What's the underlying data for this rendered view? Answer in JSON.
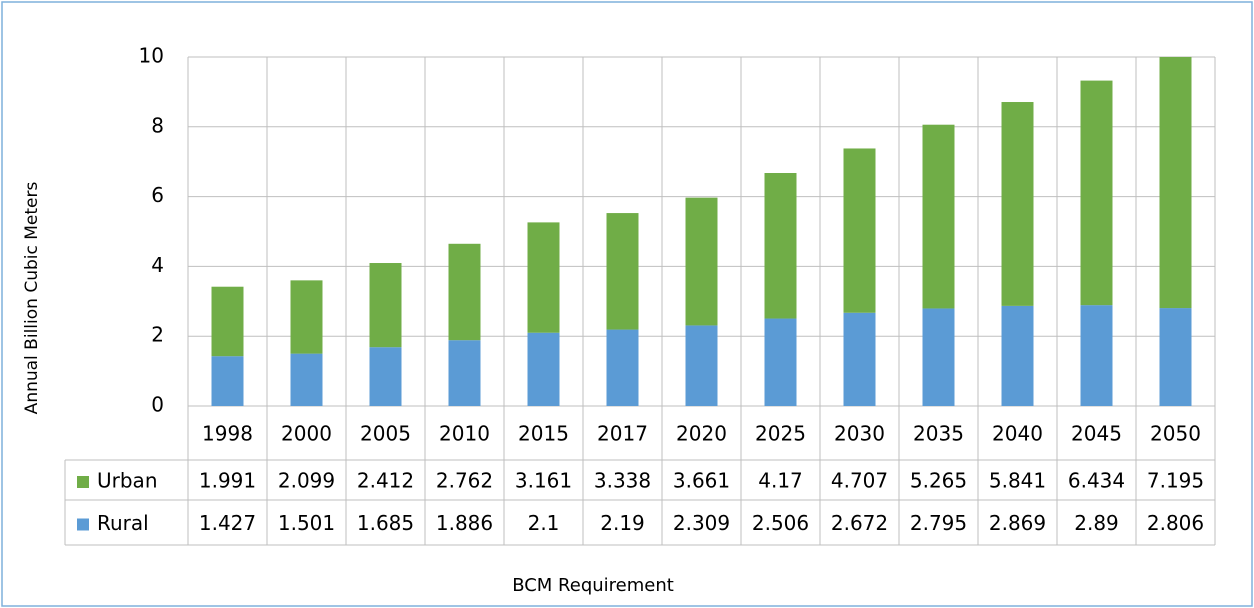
{
  "chart_data": {
    "type": "stacked_bar",
    "y_axis_label": "Annual Billion Cubic Meters",
    "x_axis_label": "BCM Requirement",
    "categories": [
      "1998",
      "2000",
      "2005",
      "2010",
      "2015",
      "2017",
      "2020",
      "2025",
      "2030",
      "2035",
      "2040",
      "2045",
      "2050"
    ],
    "series": [
      {
        "name": "Urban",
        "color": "#70ad47",
        "values": [
          1.991,
          2.099,
          2.412,
          2.762,
          3.161,
          3.338,
          3.661,
          4.17,
          4.707,
          5.265,
          5.841,
          6.434,
          7.195
        ]
      },
      {
        "name": "Rural",
        "color": "#5b9bd5",
        "values": [
          1.427,
          1.501,
          1.685,
          1.886,
          2.1,
          2.19,
          2.309,
          2.506,
          2.672,
          2.795,
          2.869,
          2.89,
          2.806
        ]
      }
    ],
    "ylim": [
      0,
      10
    ],
    "yticks": [
      0,
      2,
      4,
      6,
      8,
      10
    ],
    "grid": true
  }
}
